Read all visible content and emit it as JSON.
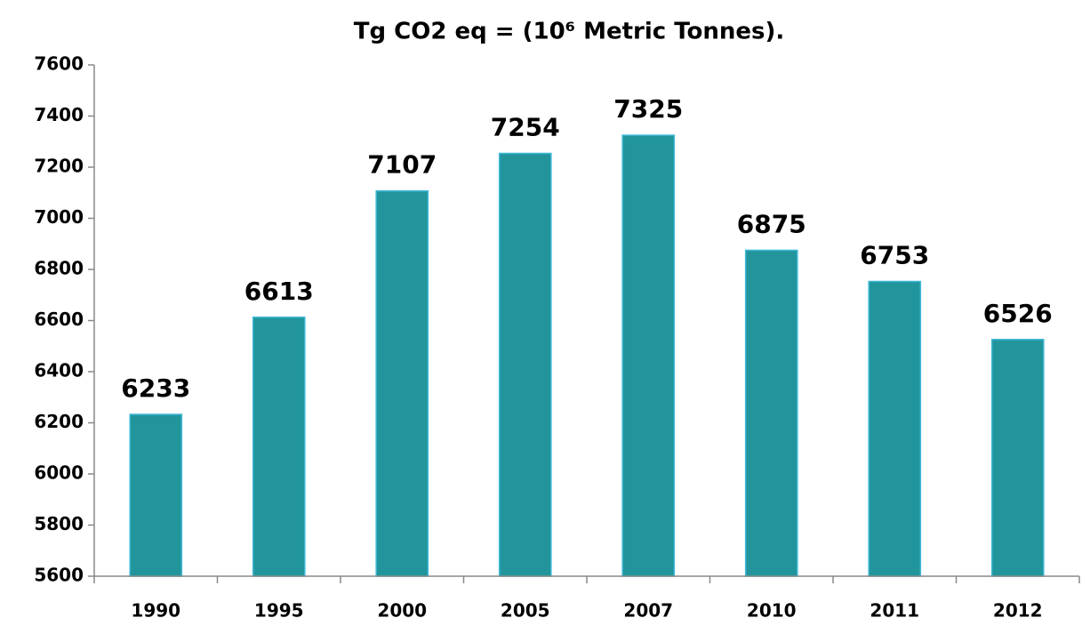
{
  "chart_data": {
    "type": "bar",
    "title": "Tg CO2 eq  =  (10⁶ Metric Tonnes).",
    "categories": [
      "1990",
      "1995",
      "2000",
      "2005",
      "2007",
      "2010",
      "2011",
      "2012"
    ],
    "values": [
      6233,
      6613,
      7107,
      7254,
      7325,
      6875,
      6753,
      6526
    ],
    "color": "#21959b",
    "ylim": [
      5600,
      7600
    ],
    "yticks": [
      5600,
      5800,
      6000,
      6200,
      6400,
      6600,
      6800,
      7000,
      7200,
      7400,
      7600
    ],
    "grid": false,
    "data_labels": true
  }
}
